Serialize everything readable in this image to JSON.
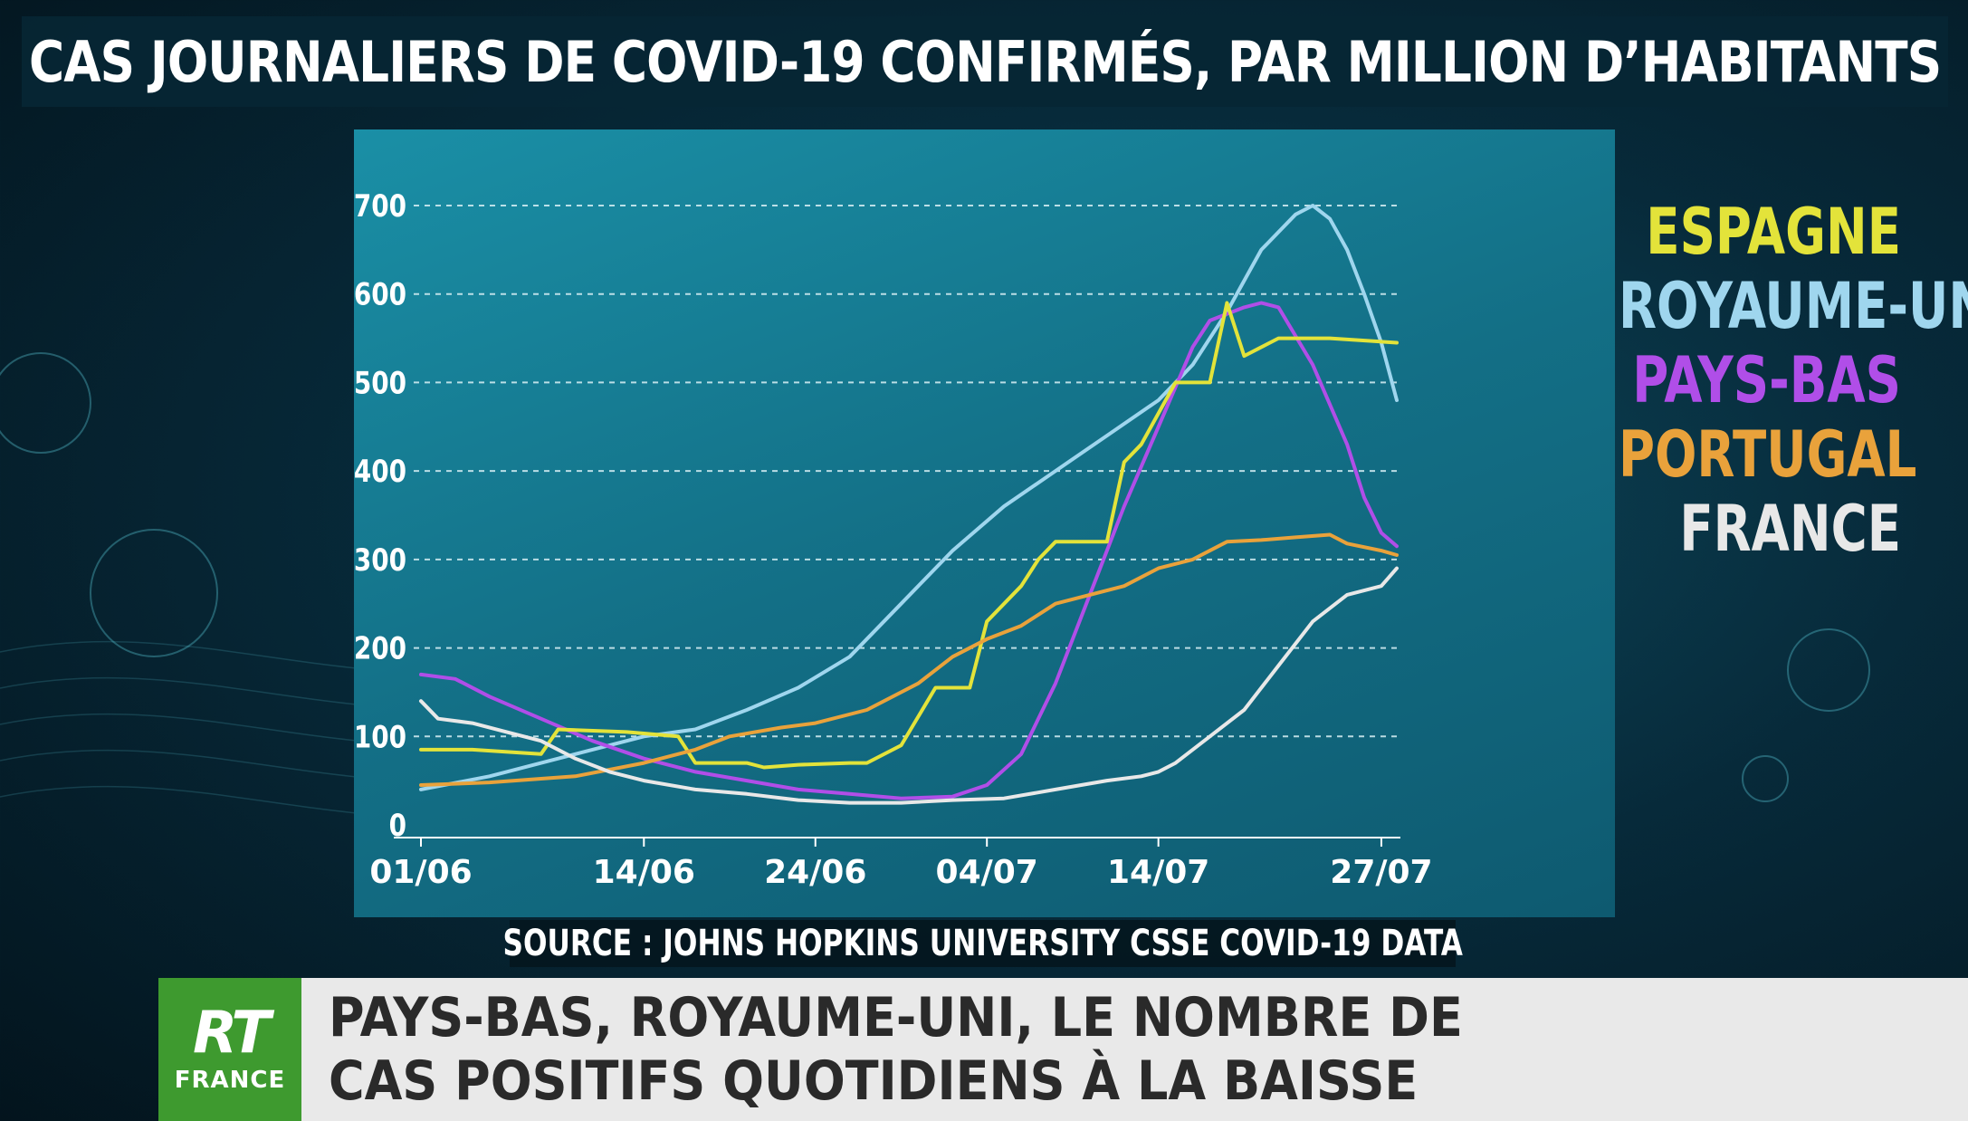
{
  "title": "CAS JOURNALIERS DE COVID-19 CONFIRMÉS, PAR MILLION D’HABITANTS",
  "source": "SOURCE : JOHNS HOPKINS UNIVERSITY CSSE COVID-19 DATA",
  "logo": {
    "brand": "RT",
    "sub": "FRANCE"
  },
  "headline": {
    "line1": "PAYS-BAS, ROYAUME-UNI, LE NOMBRE DE",
    "line2": "CAS POSITIFS QUOTIDIENS À LA BAISSE"
  },
  "colors": {
    "ESPAGNE": "#e3e33a",
    "ROYAUME-UNI": "#9fd6ee",
    "PAYS-BAS": "#b04ee8",
    "PORTUGAL": "#e9a23b",
    "FRANCE": "#e8e8e8"
  },
  "chart_data": {
    "type": "line",
    "x_ticks": [
      "01/06",
      "14/06",
      "24/06",
      "04/07",
      "14/07",
      "27/07"
    ],
    "x_tick_days": [
      1,
      14,
      24,
      34,
      44,
      57
    ],
    "y_ticks": [
      0,
      100,
      200,
      300,
      400,
      500,
      600,
      700
    ],
    "ylim": [
      0,
      700
    ],
    "xlim": [
      1,
      57
    ],
    "series": [
      {
        "name": "ROYAUME-UNI",
        "points": [
          [
            1,
            40
          ],
          [
            5,
            55
          ],
          [
            10,
            80
          ],
          [
            14,
            100
          ],
          [
            17,
            108
          ],
          [
            20,
            130
          ],
          [
            23,
            155
          ],
          [
            26,
            190
          ],
          [
            29,
            250
          ],
          [
            32,
            310
          ],
          [
            35,
            360
          ],
          [
            38,
            400
          ],
          [
            41,
            440
          ],
          [
            44,
            480
          ],
          [
            46,
            520
          ],
          [
            48,
            580
          ],
          [
            50,
            650
          ],
          [
            52,
            690
          ],
          [
            53,
            700
          ],
          [
            54,
            685
          ],
          [
            55,
            650
          ],
          [
            56,
            600
          ],
          [
            57,
            545
          ],
          [
            57.9,
            480
          ]
        ]
      },
      {
        "name": "PAYS-BAS",
        "points": [
          [
            1,
            170
          ],
          [
            3,
            165
          ],
          [
            5,
            145
          ],
          [
            8,
            120
          ],
          [
            11,
            95
          ],
          [
            14,
            75
          ],
          [
            17,
            60
          ],
          [
            20,
            50
          ],
          [
            23,
            40
          ],
          [
            26,
            35
          ],
          [
            29,
            30
          ],
          [
            32,
            32
          ],
          [
            34,
            45
          ],
          [
            36,
            80
          ],
          [
            38,
            160
          ],
          [
            40,
            260
          ],
          [
            42,
            360
          ],
          [
            44,
            450
          ],
          [
            46,
            540
          ],
          [
            47,
            570
          ],
          [
            49,
            585
          ],
          [
            50,
            590
          ],
          [
            51,
            585
          ],
          [
            53,
            520
          ],
          [
            55,
            430
          ],
          [
            56,
            370
          ],
          [
            57,
            330
          ],
          [
            57.9,
            315
          ]
        ]
      },
      {
        "name": "ESPAGNE",
        "points": [
          [
            1,
            85
          ],
          [
            4,
            85
          ],
          [
            8,
            80
          ],
          [
            9,
            108
          ],
          [
            13,
            105
          ],
          [
            16,
            100
          ],
          [
            17,
            70
          ],
          [
            20,
            70
          ],
          [
            21,
            65
          ],
          [
            23,
            68
          ],
          [
            26,
            70
          ],
          [
            27,
            70
          ],
          [
            29,
            90
          ],
          [
            31,
            155
          ],
          [
            33,
            155
          ],
          [
            34,
            230
          ],
          [
            36,
            270
          ],
          [
            37,
            300
          ],
          [
            38,
            320
          ],
          [
            41,
            320
          ],
          [
            42,
            410
          ],
          [
            43,
            430
          ],
          [
            45,
            500
          ],
          [
            47,
            500
          ],
          [
            48,
            590
          ],
          [
            49,
            530
          ],
          [
            51,
            550
          ],
          [
            54,
            550
          ],
          [
            57.9,
            545
          ]
        ]
      },
      {
        "name": "PORTUGAL",
        "points": [
          [
            1,
            45
          ],
          [
            5,
            48
          ],
          [
            10,
            55
          ],
          [
            14,
            70
          ],
          [
            17,
            85
          ],
          [
            19,
            100
          ],
          [
            22,
            110
          ],
          [
            24,
            115
          ],
          [
            27,
            130
          ],
          [
            30,
            160
          ],
          [
            32,
            190
          ],
          [
            34,
            210
          ],
          [
            36,
            225
          ],
          [
            38,
            250
          ],
          [
            40,
            260
          ],
          [
            42,
            270
          ],
          [
            44,
            290
          ],
          [
            46,
            300
          ],
          [
            48,
            320
          ],
          [
            50,
            322
          ],
          [
            52,
            325
          ],
          [
            54,
            328
          ],
          [
            55,
            318
          ],
          [
            57,
            310
          ],
          [
            57.9,
            305
          ]
        ]
      },
      {
        "name": "FRANCE",
        "points": [
          [
            1,
            140
          ],
          [
            2,
            120
          ],
          [
            4,
            115
          ],
          [
            6,
            105
          ],
          [
            8,
            95
          ],
          [
            10,
            75
          ],
          [
            12,
            60
          ],
          [
            14,
            50
          ],
          [
            17,
            40
          ],
          [
            20,
            35
          ],
          [
            23,
            28
          ],
          [
            26,
            25
          ],
          [
            29,
            25
          ],
          [
            32,
            28
          ],
          [
            35,
            30
          ],
          [
            38,
            40
          ],
          [
            41,
            50
          ],
          [
            43,
            55
          ],
          [
            44,
            60
          ],
          [
            45,
            70
          ],
          [
            47,
            100
          ],
          [
            49,
            130
          ],
          [
            51,
            180
          ],
          [
            53,
            230
          ],
          [
            55,
            260
          ],
          [
            57,
            270
          ],
          [
            57.9,
            290
          ]
        ]
      }
    ]
  }
}
